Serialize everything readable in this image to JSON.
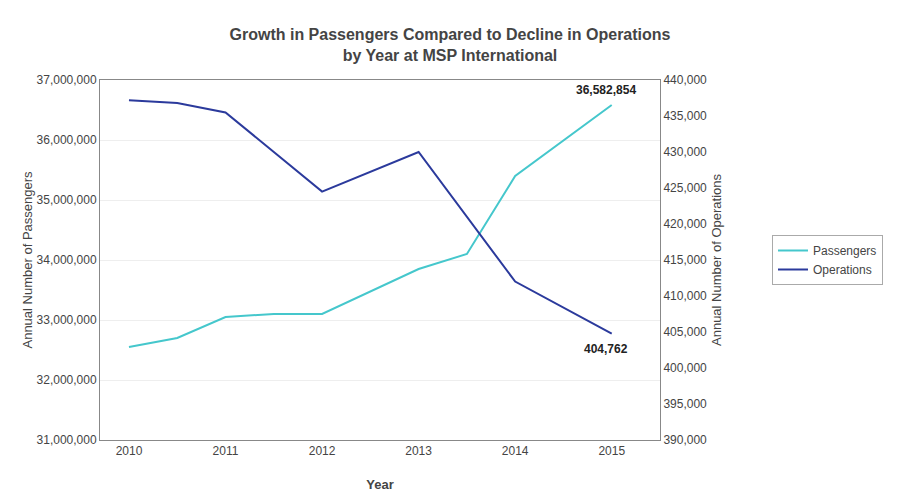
{
  "chart_data": {
    "type": "line",
    "title": "Growth in Passengers Compared to Decline in Operations\nby Year at MSP International",
    "x_label": "Year",
    "y_label": "Annual Number of Passengers",
    "y2_label": "Annual Number of Operations",
    "series": [
      {
        "name": "Passengers",
        "color": "#45C7CC",
        "x": [
          2010,
          2010.5,
          2011,
          2011.5,
          2012,
          2013,
          2013.5,
          2014,
          2015
        ],
        "values": [
          32550000,
          32700000,
          33050000,
          33100000,
          33100000,
          33850000,
          34100000,
          35400000,
          36582854
        ]
      },
      {
        "name": "Operations",
        "color": "#2B3A9C",
        "axis": "y2",
        "x": [
          2010,
          2010.5,
          2011,
          2012,
          2013,
          2014,
          2015
        ],
        "values": [
          437200,
          436800,
          435500,
          424500,
          430000,
          412000,
          404762
        ]
      }
    ],
    "xlim": [
      2009.7,
      2015.5
    ],
    "xticks": [
      2010,
      2011,
      2012,
      2013,
      2014,
      2015
    ],
    "ylim": [
      31000000,
      37000000
    ],
    "yticks": [
      {
        "value": 31000000,
        "label": "31,000,000"
      },
      {
        "value": 32000000,
        "label": "32,000,000"
      },
      {
        "value": 33000000,
        "label": "33,000,000"
      },
      {
        "value": 34000000,
        "label": "34,000,000"
      },
      {
        "value": 35000000,
        "label": "35,000,000"
      },
      {
        "value": 36000000,
        "label": "36,000,000"
      },
      {
        "value": 37000000,
        "label": "37,000,000"
      }
    ],
    "y2lim": [
      390000,
      440000
    ],
    "y2ticks": [
      {
        "value": 390000,
        "label": "390,000"
      },
      {
        "value": 395000,
        "label": "395,000"
      },
      {
        "value": 400000,
        "label": "400,000"
      },
      {
        "value": 405000,
        "label": "405,000"
      },
      {
        "value": 410000,
        "label": "410,000"
      },
      {
        "value": 415000,
        "label": "415,000"
      },
      {
        "value": 420000,
        "label": "420,000"
      },
      {
        "value": 425000,
        "label": "425,000"
      },
      {
        "value": 430000,
        "label": "430,000"
      },
      {
        "value": 435000,
        "label": "435,000"
      },
      {
        "value": 440000,
        "label": "440,000"
      }
    ],
    "annotations": [
      {
        "text": "36,582,854",
        "x": 2015,
        "y": 36582854
      },
      {
        "text": "404,762",
        "x": 2015,
        "y": 404762,
        "axis": "y2"
      }
    ],
    "grid": true,
    "legend": "right"
  }
}
